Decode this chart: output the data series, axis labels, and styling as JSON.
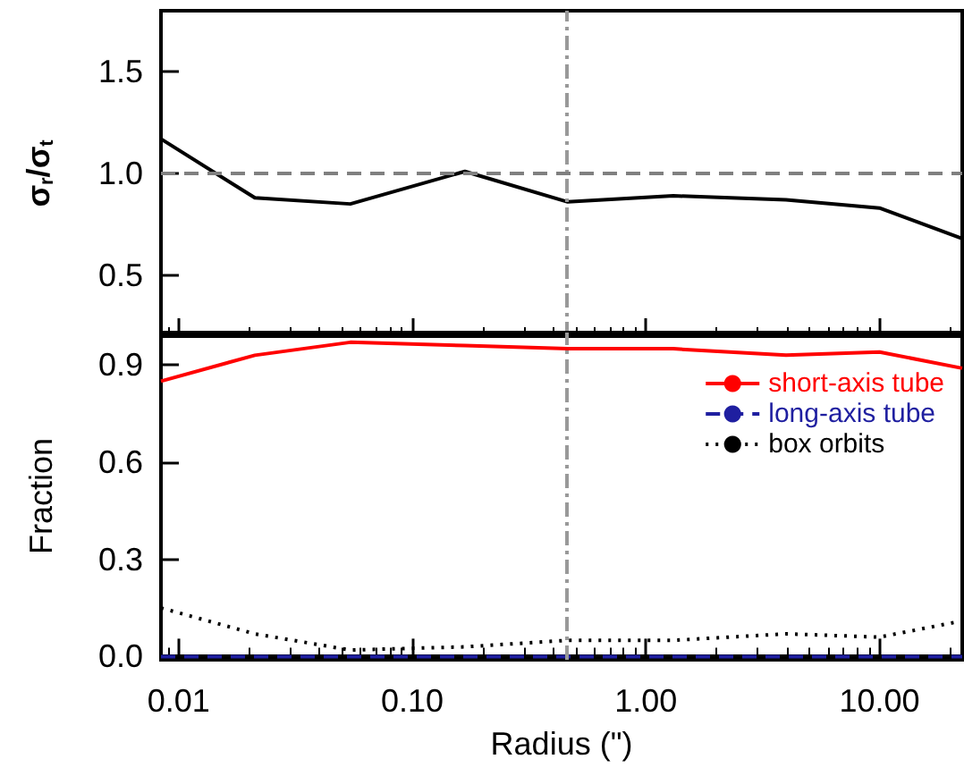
{
  "chart_data": [
    {
      "type": "line",
      "ylabel": "σ$_{r}$/σ$_{t}$",
      "log": "x",
      "tick_labels": "y",
      "grid": false,
      "legend": false,
      "marker": "none",
      "xlim": [
        0.0084,
        22.6
      ],
      "xticks": [
        {
          "value": 0.01,
          "label": null
        },
        {
          "value": 0.1,
          "label": null
        },
        {
          "value": 1,
          "label": null
        },
        {
          "value": 10,
          "label": null
        }
      ],
      "ylim": [
        0.2,
        1.8
      ],
      "yticks": [
        {
          "value": 0.5,
          "label": "0.5"
        },
        {
          "value": 1.0,
          "label": "1.0"
        },
        {
          "value": 1.5,
          "label": "1.5"
        }
      ],
      "x": [
        0.0084,
        0.0212,
        0.0543,
        0.168,
        0.463,
        1.31,
        3.98,
        10,
        22.6
      ],
      "series": [
        {
          "color": "#000000",
          "line_style": "solid",
          "values": [
            1.17,
            0.88,
            0.85,
            1.01,
            0.86,
            0.89,
            0.87,
            0.83,
            0.68
          ]
        }
      ],
      "ref_lines": [
        {
          "axis": "x",
          "value": 0.463,
          "color": "#999999",
          "line_style": "dashdot"
        },
        {
          "axis": "y",
          "value": 1.0,
          "color": "#808080",
          "line_style": "dashed"
        }
      ]
    },
    {
      "type": "line",
      "xlabel": "Radius (\")",
      "ylabel": "Fraction",
      "log": "x",
      "grid": false,
      "legend": "top right",
      "marker": "none",
      "xlim": [
        0.0084,
        22.6
      ],
      "xticks": [
        {
          "value": 0.01,
          "label": "0.01"
        },
        {
          "value": 0.1,
          "label": "0.10"
        },
        {
          "value": 1,
          "label": "1.00"
        },
        {
          "value": 10,
          "label": "10.00"
        }
      ],
      "ylim": [
        -0.01,
        1.0
      ],
      "yticks": [
        {
          "value": 0,
          "label": "0.0"
        },
        {
          "value": 0.3,
          "label": "0.3"
        },
        {
          "value": 0.6,
          "label": "0.6"
        },
        {
          "value": 0.9,
          "label": "0.9"
        }
      ],
      "x": [
        0.0084,
        0.0212,
        0.0543,
        0.168,
        0.463,
        1.31,
        3.98,
        10,
        22.6
      ],
      "series": [
        {
          "name": "short-axis tube",
          "color": "#ff0000",
          "line_style": "solid",
          "values": [
            0.85,
            0.93,
            0.97,
            0.96,
            0.95,
            0.95,
            0.93,
            0.94,
            0.89
          ]
        },
        {
          "name": "long-axis tube",
          "color": "#1f1fa0",
          "line_style": "dashed",
          "values": [
            0,
            0,
            0,
            0,
            0,
            0,
            0,
            0,
            0
          ]
        },
        {
          "name": "box orbits",
          "color": "#000000",
          "line_style": "dotted",
          "values": [
            0.15,
            0.07,
            0.02,
            0.03,
            0.05,
            0.05,
            0.07,
            0.06,
            0.11
          ]
        }
      ],
      "ref_lines": [
        {
          "axis": "x",
          "value": 0.463,
          "color": "#999999",
          "line_style": "dashdot"
        }
      ]
    }
  ]
}
